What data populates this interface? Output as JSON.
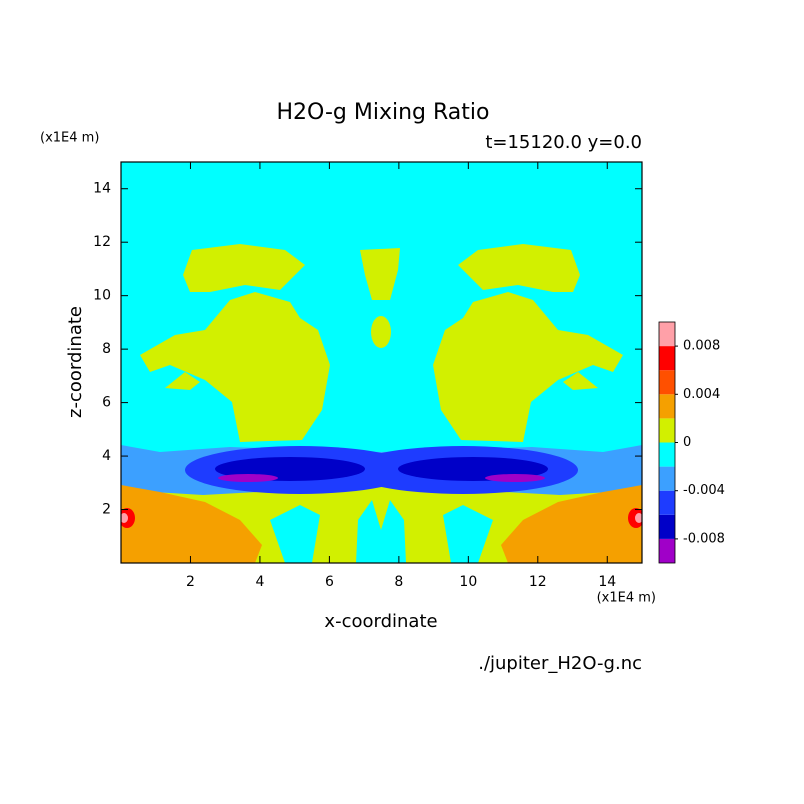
{
  "chart_data": {
    "type": "contour",
    "title": "H2O-g Mixing Ratio",
    "subtitle": "t=15120.0 y=0.0",
    "x_label": "x-coordinate",
    "y_label": "z-coordinate",
    "x_unit": "(x1E4 m)",
    "y_unit": "(x1E4 m)",
    "source": "./jupiter_H2O-g.nc",
    "xlim": [
      0,
      15
    ],
    "ylim": [
      0,
      15
    ],
    "xticks": [
      2,
      4,
      6,
      8,
      10,
      12,
      14
    ],
    "yticks": [
      2,
      4,
      6,
      8,
      10,
      12,
      14
    ],
    "colorbar": {
      "clim": [
        -0.01,
        0.01
      ],
      "ticks": [
        -0.008,
        -0.004,
        0,
        0.004,
        0.008
      ],
      "colors": [
        "#a000c8",
        "#0000c8",
        "#1e3cff",
        "#3ca0ff",
        "#00ffff",
        "#d2f000",
        "#f5a000",
        "#ff5000",
        "#ff0000",
        "#ffa0a8"
      ]
    }
  }
}
